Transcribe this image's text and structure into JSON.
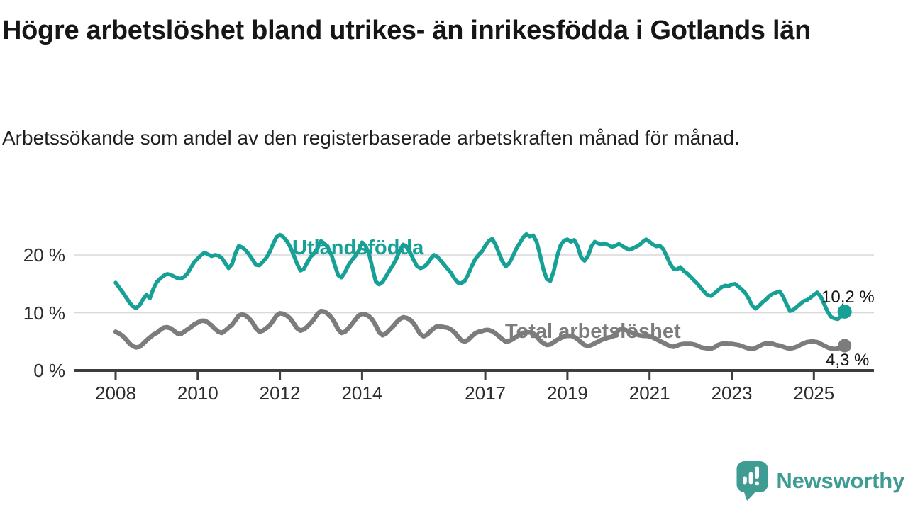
{
  "header": {
    "title": "Högre arbetslöshet bland utrikes- än inrikesfödda i Gotlands län",
    "subtitle": "Arbetssökande som andel av den registerbaserade arbetskraften månad för månad."
  },
  "branding": {
    "logo_text": "Newsworthy",
    "logo_color": "#3f9c93"
  },
  "colors": {
    "foreign_born_line": "#16a096",
    "total_line": "#7c7c7c",
    "gridline": "#d8d8d8",
    "axis": "#3d3d3d",
    "text": "#161616"
  },
  "chart_data": {
    "type": "line",
    "title": "Högre arbetslöshet bland utrikes- än inrikesfödda i Gotlands län",
    "subtitle": "Arbetssökande som andel av den registerbaserade arbetskraften månad för månad.",
    "frequency": "monthly",
    "x_start": "2008-01",
    "x_end": "2025-10",
    "ylim": [
      0,
      25
    ],
    "grid": "horizontal",
    "legend_position": "inline-labels",
    "x_tick_years": [
      2008,
      2010,
      2012,
      2014,
      2017,
      2019,
      2021,
      2023,
      2025
    ],
    "y_ticks": [
      {
        "value": 0,
        "label": "0 %"
      },
      {
        "value": 10,
        "label": "10 %"
      },
      {
        "value": 20,
        "label": "20 %"
      }
    ],
    "series": [
      {
        "name": "Utlandsfödda",
        "color": "#16a096",
        "end_value": 10.2,
        "end_label": "10,2 %",
        "values": [
          15.2,
          14.4,
          13.6,
          12.7,
          11.8,
          11.1,
          10.8,
          11.3,
          12.3,
          13.1,
          12.5,
          14.1,
          15.3,
          15.9,
          16.4,
          16.7,
          16.6,
          16.3,
          16.0,
          15.9,
          16.2,
          16.8,
          17.8,
          18.8,
          19.4,
          20.0,
          20.4,
          20.1,
          19.8,
          20.0,
          19.9,
          19.5,
          18.6,
          17.7,
          18.4,
          20.3,
          21.6,
          21.3,
          20.8,
          20.1,
          19.2,
          18.3,
          18.2,
          18.8,
          19.5,
          20.5,
          21.9,
          23.1,
          23.5,
          23.1,
          22.4,
          21.4,
          20.0,
          18.5,
          17.3,
          17.6,
          18.7,
          19.7,
          20.3,
          21.2,
          22.4,
          22.0,
          21.3,
          20.1,
          18.3,
          16.5,
          16.1,
          17.0,
          18.2,
          19.1,
          19.8,
          20.7,
          22.2,
          21.6,
          20.3,
          17.8,
          15.4,
          14.9,
          15.3,
          16.3,
          17.3,
          18.2,
          19.3,
          20.8,
          21.8,
          21.4,
          20.5,
          19.2,
          18.1,
          17.7,
          17.9,
          18.4,
          19.3,
          20.0,
          19.7,
          19.0,
          18.3,
          17.6,
          16.9,
          15.9,
          15.2,
          15.1,
          15.5,
          16.6,
          18.0,
          19.2,
          20.0,
          20.6,
          21.6,
          22.4,
          22.8,
          21.8,
          20.3,
          18.9,
          18.0,
          18.6,
          19.7,
          21.0,
          22.0,
          23.0,
          23.6,
          23.2,
          23.4,
          22.3,
          20.0,
          17.5,
          15.8,
          15.5,
          17.2,
          19.8,
          21.7,
          22.5,
          22.7,
          22.3,
          22.6,
          21.5,
          19.6,
          19.0,
          19.8,
          21.5,
          22.3,
          22.0,
          21.8,
          22.0,
          21.7,
          21.4,
          21.6,
          21.9,
          21.6,
          21.2,
          20.9,
          21.1,
          21.4,
          21.7,
          22.3,
          22.7,
          22.3,
          21.8,
          21.5,
          21.6,
          21.0,
          19.8,
          18.5,
          17.6,
          17.5,
          17.9,
          17.2,
          16.8,
          16.2,
          15.6,
          15.0,
          14.3,
          13.6,
          13.0,
          12.9,
          13.4,
          13.9,
          14.4,
          14.7,
          14.6,
          14.9,
          15.0,
          14.5,
          14.0,
          13.4,
          12.4,
          11.2,
          10.7,
          11.2,
          11.8,
          12.3,
          12.9,
          13.3,
          13.5,
          13.7,
          12.8,
          11.5,
          10.3,
          10.5,
          11.0,
          11.5,
          12.0,
          12.2,
          12.6,
          13.1,
          13.5,
          12.8,
          11.5,
          10.2,
          9.3,
          9.0,
          8.9,
          9.4,
          10.2
        ]
      },
      {
        "name": "Total arbetslöshet",
        "color": "#7c7c7c",
        "end_value": 4.3,
        "end_label": "4,3 %",
        "values": [
          6.7,
          6.4,
          6.0,
          5.4,
          4.7,
          4.2,
          4.0,
          4.1,
          4.6,
          5.2,
          5.7,
          6.2,
          6.5,
          7.0,
          7.4,
          7.5,
          7.3,
          6.9,
          6.4,
          6.3,
          6.7,
          7.1,
          7.5,
          8.0,
          8.3,
          8.6,
          8.6,
          8.3,
          7.8,
          7.2,
          6.7,
          6.5,
          6.9,
          7.4,
          7.9,
          8.7,
          9.5,
          9.7,
          9.5,
          9.0,
          8.3,
          7.3,
          6.7,
          6.9,
          7.3,
          7.8,
          8.6,
          9.5,
          9.9,
          9.8,
          9.5,
          9.0,
          8.2,
          7.3,
          6.9,
          7.1,
          7.6,
          8.2,
          8.9,
          9.8,
          10.3,
          10.2,
          9.8,
          9.2,
          8.3,
          7.1,
          6.5,
          6.7,
          7.3,
          8.0,
          8.8,
          9.5,
          9.8,
          9.7,
          9.4,
          8.8,
          7.8,
          6.6,
          6.1,
          6.4,
          7.0,
          7.6,
          8.3,
          8.9,
          9.2,
          9.1,
          8.8,
          8.2,
          7.3,
          6.3,
          5.9,
          6.2,
          6.8,
          7.3,
          7.7,
          7.6,
          7.5,
          7.4,
          7.1,
          6.6,
          5.9,
          5.2,
          5.0,
          5.3,
          5.9,
          6.4,
          6.7,
          6.8,
          7.0,
          7.0,
          6.8,
          6.4,
          5.9,
          5.4,
          5.0,
          5.1,
          5.4,
          5.8,
          6.2,
          6.5,
          6.6,
          6.6,
          6.4,
          5.9,
          5.2,
          4.7,
          4.4,
          4.5,
          4.9,
          5.3,
          5.6,
          5.9,
          6.0,
          6.0,
          5.8,
          5.4,
          4.9,
          4.4,
          4.2,
          4.4,
          4.7,
          5.0,
          5.3,
          5.5,
          5.7,
          5.8,
          6.3,
          7.0,
          7.2,
          7.0,
          6.7,
          6.5,
          6.3,
          6.1,
          6.0,
          6.0,
          5.9,
          5.7,
          5.4,
          5.1,
          4.8,
          4.5,
          4.2,
          4.1,
          4.3,
          4.5,
          4.6,
          4.6,
          4.6,
          4.5,
          4.3,
          4.0,
          3.9,
          3.8,
          3.8,
          4.0,
          4.4,
          4.6,
          4.7,
          4.6,
          4.6,
          4.5,
          4.4,
          4.2,
          4.0,
          3.8,
          3.7,
          3.9,
          4.2,
          4.5,
          4.7,
          4.7,
          4.6,
          4.4,
          4.3,
          4.1,
          3.9,
          3.8,
          3.9,
          4.1,
          4.4,
          4.7,
          4.9,
          5.0,
          5.0,
          4.9,
          4.6,
          4.3,
          4.0,
          3.8,
          3.7,
          3.8,
          4.0,
          4.3
        ]
      }
    ]
  }
}
